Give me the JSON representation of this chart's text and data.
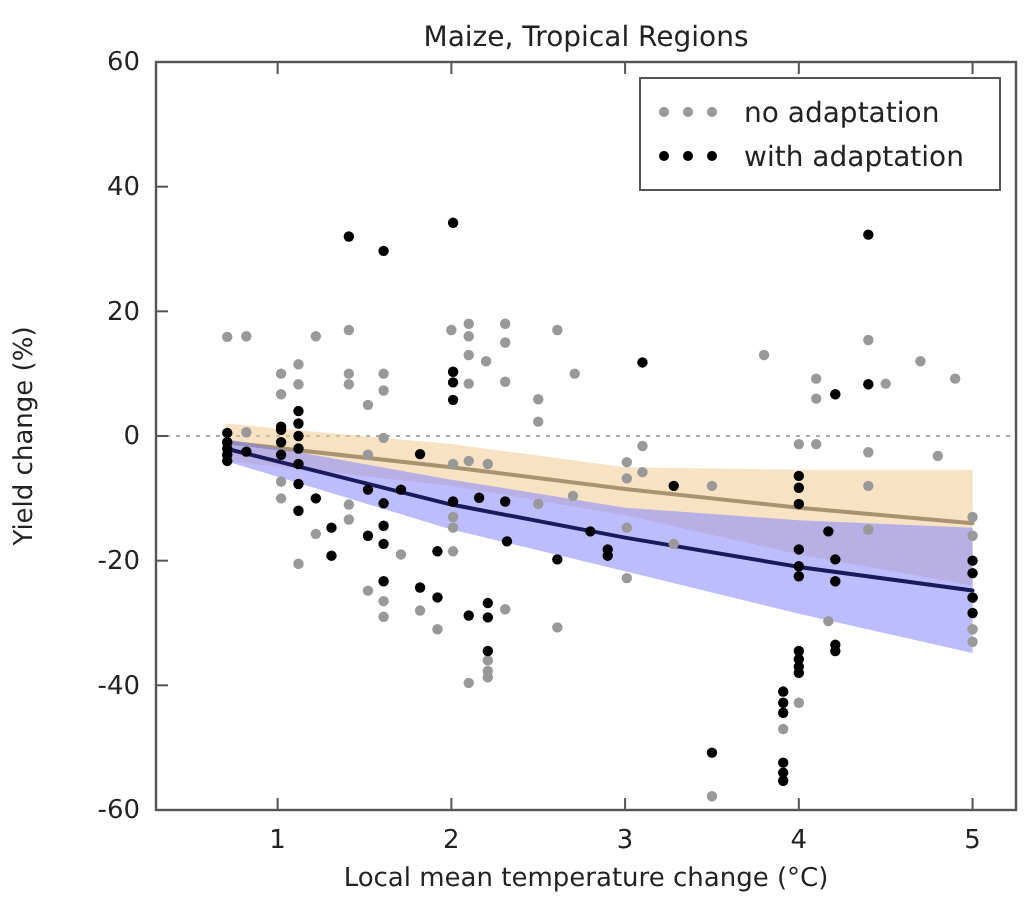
{
  "chart_data": {
    "type": "scatter",
    "title": "Maize, Tropical Regions",
    "xlabel": "Local mean temperature change (°C)",
    "ylabel": "Yield change (%)",
    "xlim": [
      0.3,
      5.25
    ],
    "xticks": [
      1,
      2,
      3,
      4,
      5
    ],
    "ylim": [
      -60,
      60
    ],
    "yticks": [
      -60,
      -40,
      -20,
      0,
      20,
      40,
      60
    ],
    "grid": false,
    "legend": "top right",
    "ref_lines": [
      {
        "axis": "y",
        "value": 0,
        "color": "#aaaaaa",
        "line_style": "dotted"
      }
    ],
    "series": [
      {
        "type": "line",
        "color": "#a89270",
        "line_style": "solid",
        "x": [
          0.7,
          2,
          3,
          4,
          5
        ],
        "values": [
          -1,
          -5,
          -8.5,
          -11.5,
          -14
        ],
        "lower": [
          -4,
          -8,
          -12.7,
          -19,
          -24
        ],
        "upper": [
          2,
          -1.3,
          -5,
          -5.4,
          -5.4
        ]
      },
      {
        "type": "line",
        "color": "#1a1a5a",
        "line_style": "solid",
        "x": [
          0.7,
          2,
          3,
          4,
          5
        ],
        "values": [
          -2,
          -11,
          -16.3,
          -21,
          -24.8
        ],
        "lower": [
          -4,
          -15,
          -21.7,
          -28.5,
          -34.8
        ],
        "upper": [
          -0.5,
          -7,
          -11.5,
          -13.5,
          -14.7
        ]
      },
      {
        "name": "no adaptation",
        "color": "#999999",
        "marker": "circle",
        "x": [
          0.71,
          0.82,
          1.02,
          1.02,
          1.12,
          1.12,
          1.22,
          1.41,
          1.41,
          1.41,
          1.52,
          1.61,
          1.61,
          2.0,
          2.1,
          2.1,
          2.1,
          2.1,
          2.2,
          2.31,
          2.31,
          2.31,
          2.5,
          2.5,
          2.61,
          2.71,
          3.8,
          4.1,
          4.1,
          4.4,
          4.5,
          4.7,
          4.9,
          0.71,
          0.71,
          0.82,
          1.02,
          1.02,
          1.12,
          1.22,
          1.41,
          1.41,
          1.52,
          1.52,
          1.61,
          1.61,
          1.61,
          1.71,
          1.82,
          1.92,
          2.01,
          2.01,
          2.01,
          2.01,
          2.1,
          2.1,
          2.21,
          2.21,
          2.21,
          2.21,
          2.31,
          2.5,
          2.61,
          3.1,
          3.01,
          3.1,
          3.01,
          2.7,
          3.5,
          3.01,
          3.28,
          3.01,
          4.0,
          4.1,
          4.4,
          4.8,
          4.4,
          4.4,
          4.17,
          4.0,
          3.91,
          3.5,
          5,
          5,
          5,
          5,
          5
        ],
        "values": [
          15.9,
          16,
          10,
          6.7,
          11.5,
          8.3,
          16,
          17,
          10,
          8.3,
          5,
          10,
          7.3,
          17,
          18,
          16,
          13,
          8.4,
          12,
          18,
          15,
          8.7,
          5.9,
          2.3,
          17,
          10,
          13,
          9.2,
          6,
          15.4,
          8.4,
          12,
          9.2,
          -1,
          -3,
          0.6,
          -7.3,
          -10,
          -20.5,
          -15.7,
          -11,
          -13.4,
          -24.8,
          -3,
          -0.3,
          -26.5,
          -29,
          -19,
          -28,
          -31,
          -4.5,
          -13,
          -14.7,
          -18.5,
          -39.6,
          -4,
          -4.5,
          -36,
          -37.7,
          -38.7,
          -27.8,
          -10.9,
          -30.7,
          -1.6,
          -4.2,
          -5.8,
          -6.8,
          -9.6,
          -8,
          -14.7,
          -17.3,
          -22.8,
          -1.3,
          -1.3,
          -2.6,
          -3.2,
          -8,
          -15,
          -29.7,
          -42.8,
          -47,
          -57.8,
          -13,
          -16,
          -26,
          -31,
          -33
        ]
      },
      {
        "name": "with adaptation",
        "color": "#000000",
        "marker": "circle",
        "x": [
          1.41,
          1.61,
          2.01,
          2.01,
          2.01,
          2.01,
          4.4,
          3.1,
          4.4,
          4.21,
          0.71,
          0.71,
          0.71,
          0.71,
          0.71,
          0.82,
          1.02,
          1.02,
          1.02,
          1.02,
          1.12,
          1.12,
          1.12,
          1.12,
          1.12,
          1.12,
          1.12,
          1.22,
          1.31,
          1.31,
          1.52,
          1.52,
          1.61,
          1.61,
          1.61,
          1.61,
          1.71,
          1.82,
          1.82,
          1.92,
          1.92,
          2.01,
          2.1,
          2.16,
          2.21,
          2.21,
          2.21,
          2.31,
          2.32,
          2.61,
          2.8,
          2.9,
          2.9,
          3.28,
          4.0,
          4.0,
          4.0,
          4.0,
          4.0,
          4.0,
          4.17,
          4.21,
          4.21,
          4.21,
          4.21,
          4.0,
          4.0,
          4.0,
          4.0,
          3.91,
          3.91,
          3.91,
          3.91,
          3.91,
          3.91,
          3.5,
          5,
          5,
          5,
          5
        ],
        "values": [
          32,
          29.7,
          34.2,
          10.3,
          8.6,
          5.8,
          32.3,
          11.8,
          8.3,
          6.7,
          0.5,
          -1,
          -2,
          -3,
          -4,
          -2.5,
          1.5,
          1,
          -1,
          -3,
          4,
          2,
          0,
          -2,
          -4.5,
          -7.7,
          -12,
          -10,
          -14.7,
          -19.2,
          -16,
          -8.6,
          -10.8,
          -14.4,
          -17.3,
          -23.3,
          -8.6,
          -2.9,
          -24.3,
          -25.9,
          -18.5,
          -10.5,
          -28.8,
          -9.9,
          -26.8,
          -29.1,
          -34.5,
          -10.5,
          -16.9,
          -19.8,
          -15.3,
          -18.2,
          -19.2,
          -8,
          -6.4,
          -8.3,
          -10.9,
          -18.2,
          -20.9,
          -22.5,
          -15.3,
          -19.8,
          -23.3,
          -33.5,
          -34.5,
          -34.5,
          -35.8,
          -37,
          -38,
          -41,
          -42.8,
          -44.4,
          -52.4,
          -54,
          -55.3,
          -50.8,
          -20,
          -22,
          -25.9,
          -28.4
        ]
      }
    ]
  }
}
